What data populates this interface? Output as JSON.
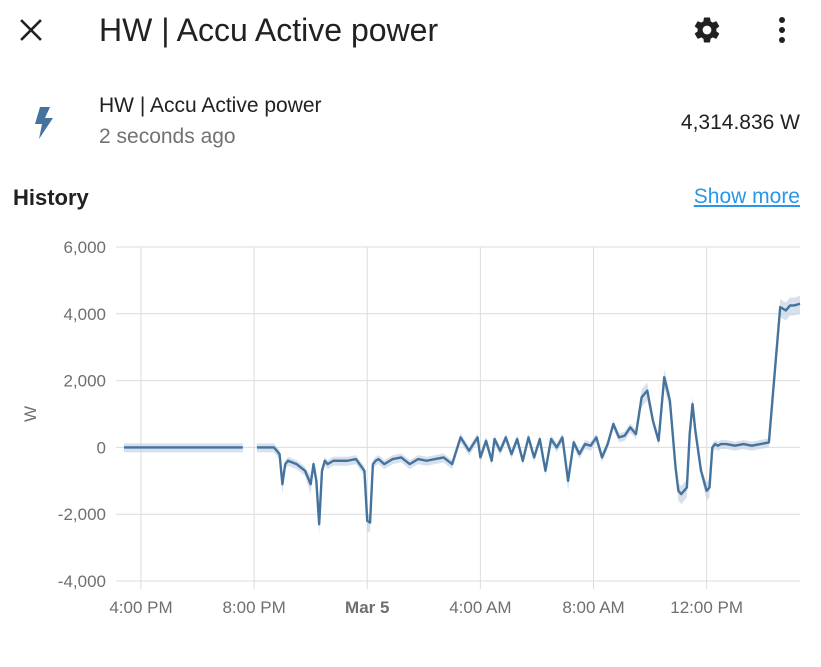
{
  "header": {
    "title": "HW | Accu Active power",
    "close_icon": "close-icon",
    "settings_icon": "gear-icon",
    "more_icon": "more-vertical-icon"
  },
  "entity": {
    "icon": "lightning-bolt-icon",
    "name": "HW | Accu Active power",
    "last_changed": "2 seconds ago",
    "state": "4,314.836 W",
    "icon_color": "#44739e"
  },
  "history": {
    "title": "History",
    "show_more": "Show more",
    "link_color": "#2a96e8"
  },
  "chart_data": {
    "type": "line",
    "ylabel": "W",
    "ylim": [
      -4000,
      6000
    ],
    "yticks": [
      6000,
      4000,
      2000,
      0,
      -2000,
      -4000
    ],
    "ytick_labels": [
      "6,000",
      "4,000",
      "2,000",
      "0",
      "-2,000",
      "-4,000"
    ],
    "xticks": [
      "4:00 PM",
      "8:00 PM",
      "Mar 5",
      "4:00 AM",
      "8:00 AM",
      "12:00 PM"
    ],
    "xtick_hours": [
      16,
      20,
      24,
      28,
      32,
      36
    ],
    "xlim_hours": [
      15.4,
      39.3
    ],
    "grid": true,
    "line_color": "#44739e",
    "band_color": "#c7d3e2",
    "series": [
      {
        "x": [
          15.4,
          19.6
        ],
        "y": [
          0,
          0
        ]
      },
      {
        "x": [
          20.1,
          20.7,
          20.9,
          21.0,
          21.1,
          21.2,
          21.5,
          21.8,
          22.0,
          22.1,
          22.2,
          22.3,
          22.4,
          22.5,
          22.6,
          22.8,
          23.0,
          23.3,
          23.6,
          23.9,
          24.0,
          24.1,
          24.2,
          24.3,
          24.4,
          24.6,
          24.9,
          25.2,
          25.5,
          25.8,
          26.1,
          26.4,
          26.7,
          27.0,
          27.3,
          27.6,
          27.9,
          28.0,
          28.2,
          28.4,
          28.5,
          28.7,
          28.9,
          29.1,
          29.3,
          29.5,
          29.7,
          29.9,
          30.1,
          30.3,
          30.5,
          30.7,
          30.9,
          31.1,
          31.3,
          31.5,
          31.7,
          31.9,
          32.1,
          32.3,
          32.5,
          32.7,
          32.9,
          33.1,
          33.3,
          33.5,
          33.7,
          33.9,
          34.1,
          34.3,
          34.5,
          34.7,
          34.9,
          35.0,
          35.1,
          35.2,
          35.3,
          35.4,
          35.5,
          35.6,
          35.8,
          36.0,
          36.1,
          36.2,
          36.3,
          36.4,
          36.5,
          36.7,
          37.0,
          37.3,
          37.6,
          37.9,
          38.2,
          38.6,
          38.8,
          38.95,
          39.1,
          39.3
        ],
        "y": [
          0,
          0,
          -200,
          -1100,
          -500,
          -400,
          -500,
          -700,
          -1100,
          -500,
          -1000,
          -2300,
          -700,
          -400,
          -500,
          -400,
          -400,
          -400,
          -350,
          -700,
          -2200,
          -2250,
          -500,
          -400,
          -350,
          -500,
          -350,
          -300,
          -500,
          -350,
          -400,
          -350,
          -300,
          -500,
          300,
          -100,
          300,
          -300,
          200,
          -400,
          250,
          -100,
          300,
          -200,
          250,
          -400,
          300,
          -300,
          250,
          -700,
          250,
          0,
          300,
          -1000,
          150,
          -200,
          100,
          50,
          300,
          -300,
          100,
          700,
          300,
          350,
          600,
          400,
          1500,
          1700,
          800,
          200,
          2100,
          1400,
          -600,
          -1300,
          -1400,
          -1300,
          -1200,
          400,
          1300,
          500,
          -700,
          -1300,
          -1200,
          0,
          100,
          50,
          100,
          100,
          50,
          100,
          50,
          100,
          150,
          4200,
          4100,
          4250,
          4250,
          4300
        ]
      }
    ]
  }
}
